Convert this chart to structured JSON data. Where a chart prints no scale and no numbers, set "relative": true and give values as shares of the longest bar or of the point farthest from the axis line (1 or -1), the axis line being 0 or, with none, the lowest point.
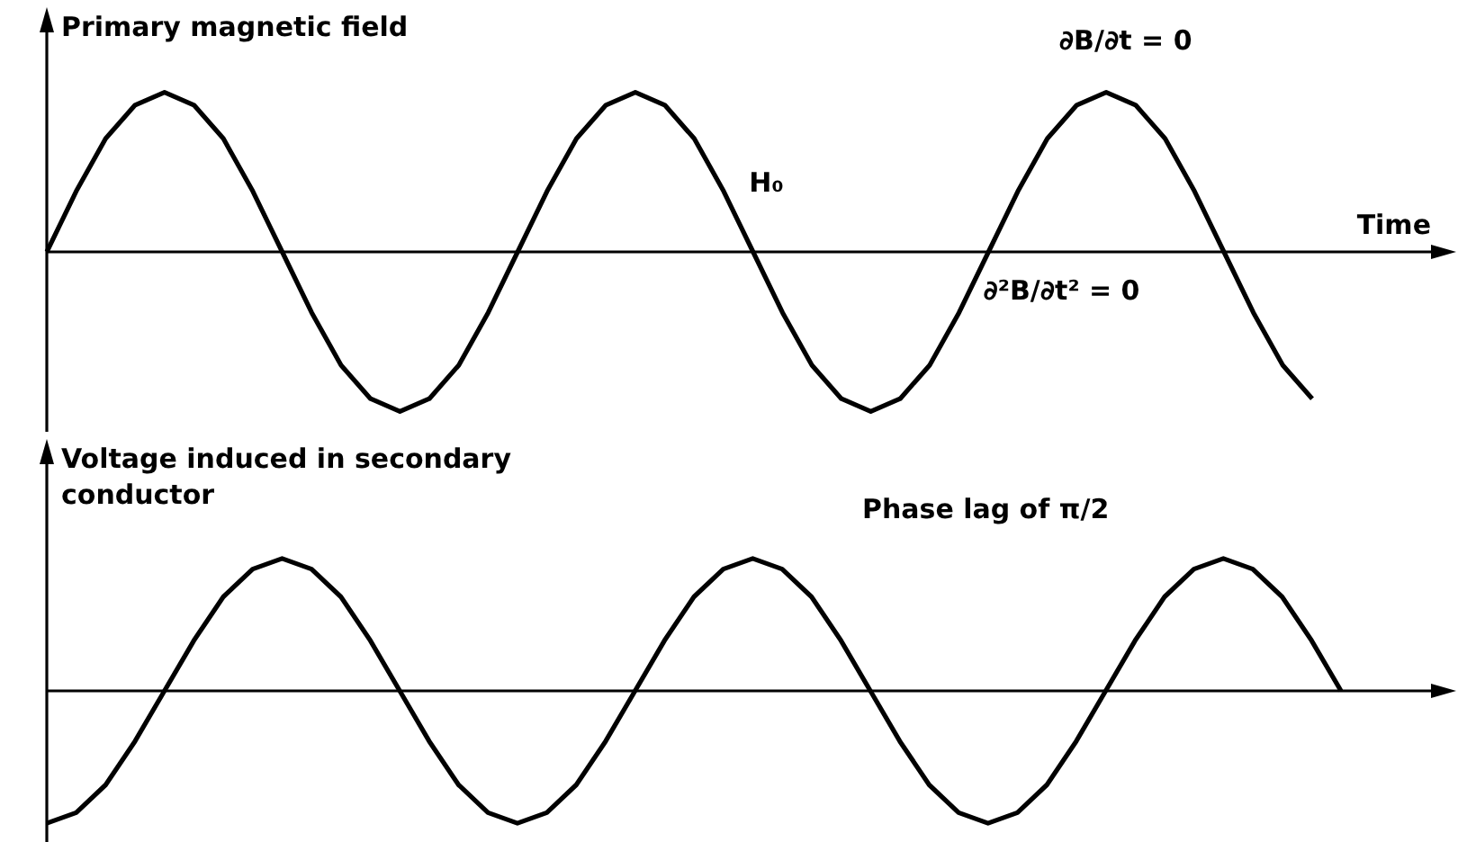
{
  "chart_data": [
    {
      "type": "line",
      "relative": true,
      "ylabel": "Primary magnetic field",
      "xlabel": "Time",
      "grid": false,
      "legend": false,
      "marker": "none",
      "line_style": "solid",
      "categories": [
        null,
        null,
        null,
        null,
        null,
        null,
        null,
        null,
        null,
        null,
        null,
        null,
        null,
        null,
        null,
        null,
        null,
        null,
        null,
        null,
        null,
        null,
        null,
        null,
        null,
        null,
        null,
        null,
        null,
        null,
        null,
        null,
        null,
        null,
        null,
        null,
        null,
        null,
        null,
        null,
        null,
        null,
        null,
        null
      ],
      "series": [
        {
          "color": "#000000",
          "values": [
            0,
            0.38,
            0.71,
            0.92,
            1,
            0.92,
            0.71,
            0.38,
            0,
            -0.38,
            -0.71,
            -0.92,
            -1,
            -0.92,
            -0.71,
            -0.38,
            0,
            0.38,
            0.71,
            0.92,
            1,
            0.92,
            0.71,
            0.38,
            0,
            -0.38,
            -0.71,
            -0.92,
            -1,
            -0.92,
            -0.71,
            -0.38,
            0,
            0.38,
            0.71,
            0.92,
            1,
            0.92,
            0.71,
            0.38,
            0,
            -0.38,
            -0.71,
            -0.92
          ]
        }
      ],
      "annotations": [
        "H₀",
        "∂B/∂t = 0",
        "∂²B/∂t² = 0"
      ]
    },
    {
      "type": "line",
      "relative": true,
      "ylabel": "Voltage induced in secondary conductor",
      "grid": false,
      "legend": false,
      "marker": "none",
      "line_style": "solid",
      "categories": [
        null,
        null,
        null,
        null,
        null,
        null,
        null,
        null,
        null,
        null,
        null,
        null,
        null,
        null,
        null,
        null,
        null,
        null,
        null,
        null,
        null,
        null,
        null,
        null,
        null,
        null,
        null,
        null,
        null,
        null,
        null,
        null,
        null,
        null,
        null,
        null,
        null,
        null,
        null,
        null,
        null,
        null,
        null,
        null,
        null
      ],
      "series": [
        {
          "color": "#000000",
          "values": [
            -1,
            -0.92,
            -0.71,
            -0.38,
            0,
            0.38,
            0.71,
            0.92,
            1,
            0.92,
            0.71,
            0.38,
            0,
            -0.38,
            -0.71,
            -0.92,
            -1,
            -0.92,
            -0.71,
            -0.38,
            0,
            0.38,
            0.71,
            0.92,
            1,
            0.92,
            0.71,
            0.38,
            0,
            -0.38,
            -0.71,
            -0.92,
            -1,
            -0.92,
            -0.71,
            -0.38,
            0,
            0.38,
            0.71,
            0.92,
            1,
            0.92,
            0.71,
            0.38,
            0
          ]
        }
      ],
      "annotations": [
        "Phase lag of π/2"
      ]
    }
  ]
}
